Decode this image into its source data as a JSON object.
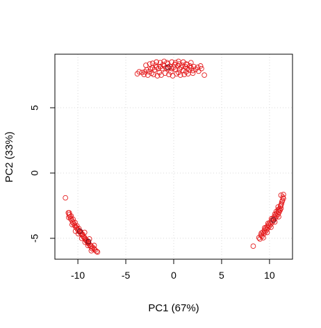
{
  "chart_data": {
    "type": "scatter",
    "xlabel": "PC1 (67%)",
    "ylabel": "PC2 (33%)",
    "xlim": [
      -12.4,
      12.4
    ],
    "ylim": [
      -6.6,
      9.1
    ],
    "xticks": [
      -10,
      -5,
      0,
      5,
      10
    ],
    "yticks": [
      -5,
      0,
      5
    ],
    "xtick_labels": [
      "-10",
      "-5",
      "0",
      "5",
      "10"
    ],
    "ytick_labels": [
      "-5",
      "0",
      "5"
    ],
    "grid": true,
    "grid_style": "dotted",
    "colors": {
      "points_primary": "#e41a1c",
      "points_dark": "#7a1422",
      "grid": "#d8d8d8",
      "frame": "#000000"
    },
    "clusters": [
      {
        "label": "top",
        "points": [
          [
            -3.8,
            7.6
          ],
          [
            -3.3,
            7.7
          ],
          [
            -3.0,
            7.75
          ],
          [
            -2.8,
            7.9
          ],
          [
            -2.6,
            7.75
          ],
          [
            -2.4,
            7.95
          ],
          [
            -2.2,
            8.05
          ],
          [
            -2.0,
            7.9
          ],
          [
            -1.8,
            8.1
          ],
          [
            -1.6,
            8.0
          ],
          [
            -1.4,
            8.15
          ],
          [
            -1.2,
            8.0
          ],
          [
            -1.0,
            8.2
          ],
          [
            -0.8,
            8.05
          ],
          [
            -0.6,
            8.0
          ],
          [
            -0.4,
            8.15
          ],
          [
            -0.2,
            8.0
          ],
          [
            0.0,
            8.1
          ],
          [
            0.2,
            7.95
          ],
          [
            0.4,
            8.2
          ],
          [
            0.6,
            7.95
          ],
          [
            0.8,
            8.1
          ],
          [
            1.0,
            7.85
          ],
          [
            1.2,
            8.15
          ],
          [
            1.4,
            8.0
          ],
          [
            1.6,
            7.9
          ],
          [
            1.8,
            8.05
          ],
          [
            2.0,
            7.85
          ],
          [
            2.3,
            7.95
          ],
          [
            2.6,
            7.8
          ],
          [
            2.9,
            8.0
          ],
          [
            -2.1,
            7.55
          ],
          [
            -1.7,
            7.45
          ],
          [
            -1.3,
            7.5
          ],
          [
            -0.9,
            7.65
          ],
          [
            -0.5,
            7.55
          ],
          [
            -0.1,
            7.45
          ],
          [
            0.3,
            7.6
          ],
          [
            0.7,
            7.5
          ],
          [
            1.1,
            7.55
          ],
          [
            1.5,
            7.6
          ],
          [
            -2.2,
            8.4
          ],
          [
            -1.8,
            8.5
          ],
          [
            -1.4,
            8.45
          ],
          [
            -1.0,
            8.55
          ],
          [
            -0.6,
            8.35
          ],
          [
            -0.2,
            8.5
          ],
          [
            0.2,
            8.45
          ],
          [
            0.6,
            8.35
          ],
          [
            1.0,
            8.5
          ],
          [
            1.4,
            8.3
          ],
          [
            1.8,
            8.45
          ],
          [
            -2.9,
            8.25
          ],
          [
            -2.5,
            8.35
          ],
          [
            -1.9,
            8.25
          ],
          [
            -1.1,
            8.3
          ],
          [
            -0.7,
            8.45
          ],
          [
            0.1,
            8.3
          ],
          [
            0.5,
            8.55
          ],
          [
            0.9,
            8.25
          ],
          [
            1.3,
            8.35
          ],
          [
            1.7,
            8.2
          ],
          [
            2.1,
            8.15
          ],
          [
            -3.6,
            7.75
          ],
          [
            -3.1,
            7.55
          ],
          [
            -2.7,
            7.5
          ],
          [
            -2.3,
            7.65
          ],
          [
            -1.5,
            7.7
          ],
          [
            -0.3,
            7.75
          ],
          [
            0.5,
            7.7
          ],
          [
            1.3,
            7.75
          ],
          [
            2.0,
            7.65
          ],
          [
            2.5,
            8.1
          ],
          [
            2.8,
            8.2
          ],
          [
            3.2,
            7.5
          ]
        ],
        "highlighted_points": [
          [
            -0.6,
            8.1
          ]
        ]
      },
      {
        "label": "left",
        "points": [
          [
            -11.3,
            -1.9
          ],
          [
            -11.0,
            -3.05
          ],
          [
            -10.9,
            -3.2
          ],
          [
            -10.8,
            -3.35
          ],
          [
            -10.75,
            -3.5
          ],
          [
            -10.65,
            -3.6
          ],
          [
            -10.55,
            -3.75
          ],
          [
            -10.45,
            -3.85
          ],
          [
            -10.35,
            -4.0
          ],
          [
            -10.25,
            -4.1
          ],
          [
            -10.15,
            -4.2
          ],
          [
            -10.05,
            -4.3
          ],
          [
            -9.95,
            -4.4
          ],
          [
            -9.85,
            -4.5
          ],
          [
            -9.7,
            -4.6
          ],
          [
            -9.6,
            -4.7
          ],
          [
            -9.5,
            -4.8
          ],
          [
            -9.4,
            -4.9
          ],
          [
            -9.3,
            -5.0
          ],
          [
            -9.2,
            -5.1
          ],
          [
            -9.1,
            -5.2
          ],
          [
            -9.0,
            -5.3
          ],
          [
            -8.9,
            -5.4
          ],
          [
            -8.75,
            -5.5
          ],
          [
            -8.6,
            -5.6
          ],
          [
            -8.45,
            -5.7
          ],
          [
            -8.3,
            -5.8
          ],
          [
            -8.2,
            -5.9
          ],
          [
            -8.05,
            -6.0
          ],
          [
            -7.95,
            -6.05
          ],
          [
            -10.9,
            -3.05
          ],
          [
            -10.7,
            -3.3
          ],
          [
            -10.5,
            -3.55
          ],
          [
            -10.3,
            -3.8
          ],
          [
            -10.1,
            -4.05
          ],
          [
            -9.9,
            -4.25
          ],
          [
            -9.7,
            -4.5
          ],
          [
            -9.5,
            -4.7
          ],
          [
            -9.3,
            -4.95
          ],
          [
            -9.1,
            -5.15
          ],
          [
            -8.9,
            -5.35
          ],
          [
            -8.7,
            -5.6
          ],
          [
            -8.5,
            -5.8
          ],
          [
            -10.95,
            -3.4
          ],
          [
            -10.6,
            -3.95
          ],
          [
            -10.25,
            -4.45
          ],
          [
            -9.95,
            -4.65
          ],
          [
            -9.6,
            -5.0
          ],
          [
            -9.25,
            -5.3
          ],
          [
            -8.95,
            -5.55
          ],
          [
            -8.6,
            -5.95
          ],
          [
            -9.3,
            -4.55
          ],
          [
            -8.8,
            -5.05
          ],
          [
            -8.3,
            -5.55
          ]
        ],
        "highlighted_points": [
          [
            -9.8,
            -4.45
          ],
          [
            -8.9,
            -5.25
          ]
        ]
      },
      {
        "label": "right",
        "points": [
          [
            8.3,
            -5.6
          ],
          [
            8.9,
            -4.95
          ],
          [
            9.1,
            -4.75
          ],
          [
            9.3,
            -4.55
          ],
          [
            9.45,
            -4.4
          ],
          [
            9.6,
            -4.25
          ],
          [
            9.75,
            -4.1
          ],
          [
            9.9,
            -3.95
          ],
          [
            10.05,
            -3.8
          ],
          [
            10.2,
            -3.65
          ],
          [
            10.35,
            -3.5
          ],
          [
            10.5,
            -3.35
          ],
          [
            10.65,
            -3.2
          ],
          [
            10.8,
            -3.05
          ],
          [
            10.95,
            -2.9
          ],
          [
            11.05,
            -2.75
          ],
          [
            11.15,
            -2.55
          ],
          [
            11.25,
            -2.35
          ],
          [
            11.35,
            -2.1
          ],
          [
            11.4,
            -1.85
          ],
          [
            11.45,
            -1.65
          ],
          [
            9.0,
            -5.05
          ],
          [
            9.2,
            -4.85
          ],
          [
            9.4,
            -4.65
          ],
          [
            9.55,
            -4.5
          ],
          [
            9.7,
            -4.35
          ],
          [
            9.85,
            -4.2
          ],
          [
            10.0,
            -4.05
          ],
          [
            10.15,
            -3.9
          ],
          [
            10.3,
            -3.75
          ],
          [
            10.45,
            -3.6
          ],
          [
            10.6,
            -3.45
          ],
          [
            10.75,
            -3.3
          ],
          [
            10.9,
            -3.15
          ],
          [
            11.0,
            -3.0
          ],
          [
            11.1,
            -2.85
          ],
          [
            11.2,
            -2.7
          ],
          [
            9.15,
            -4.6
          ],
          [
            9.5,
            -4.2
          ],
          [
            9.85,
            -3.85
          ],
          [
            10.2,
            -3.5
          ],
          [
            10.55,
            -3.15
          ],
          [
            10.9,
            -2.8
          ],
          [
            11.2,
            -2.45
          ],
          [
            9.35,
            -4.95
          ],
          [
            9.75,
            -4.55
          ],
          [
            10.15,
            -4.15
          ],
          [
            10.55,
            -3.75
          ],
          [
            10.95,
            -3.35
          ],
          [
            11.3,
            -2.2
          ],
          [
            11.45,
            -1.95
          ],
          [
            11.2,
            -1.7
          ],
          [
            10.9,
            -2.6
          ],
          [
            10.7,
            -2.95
          ]
        ],
        "highlighted_points": [
          [
            10.4,
            -3.6
          ]
        ]
      }
    ]
  }
}
